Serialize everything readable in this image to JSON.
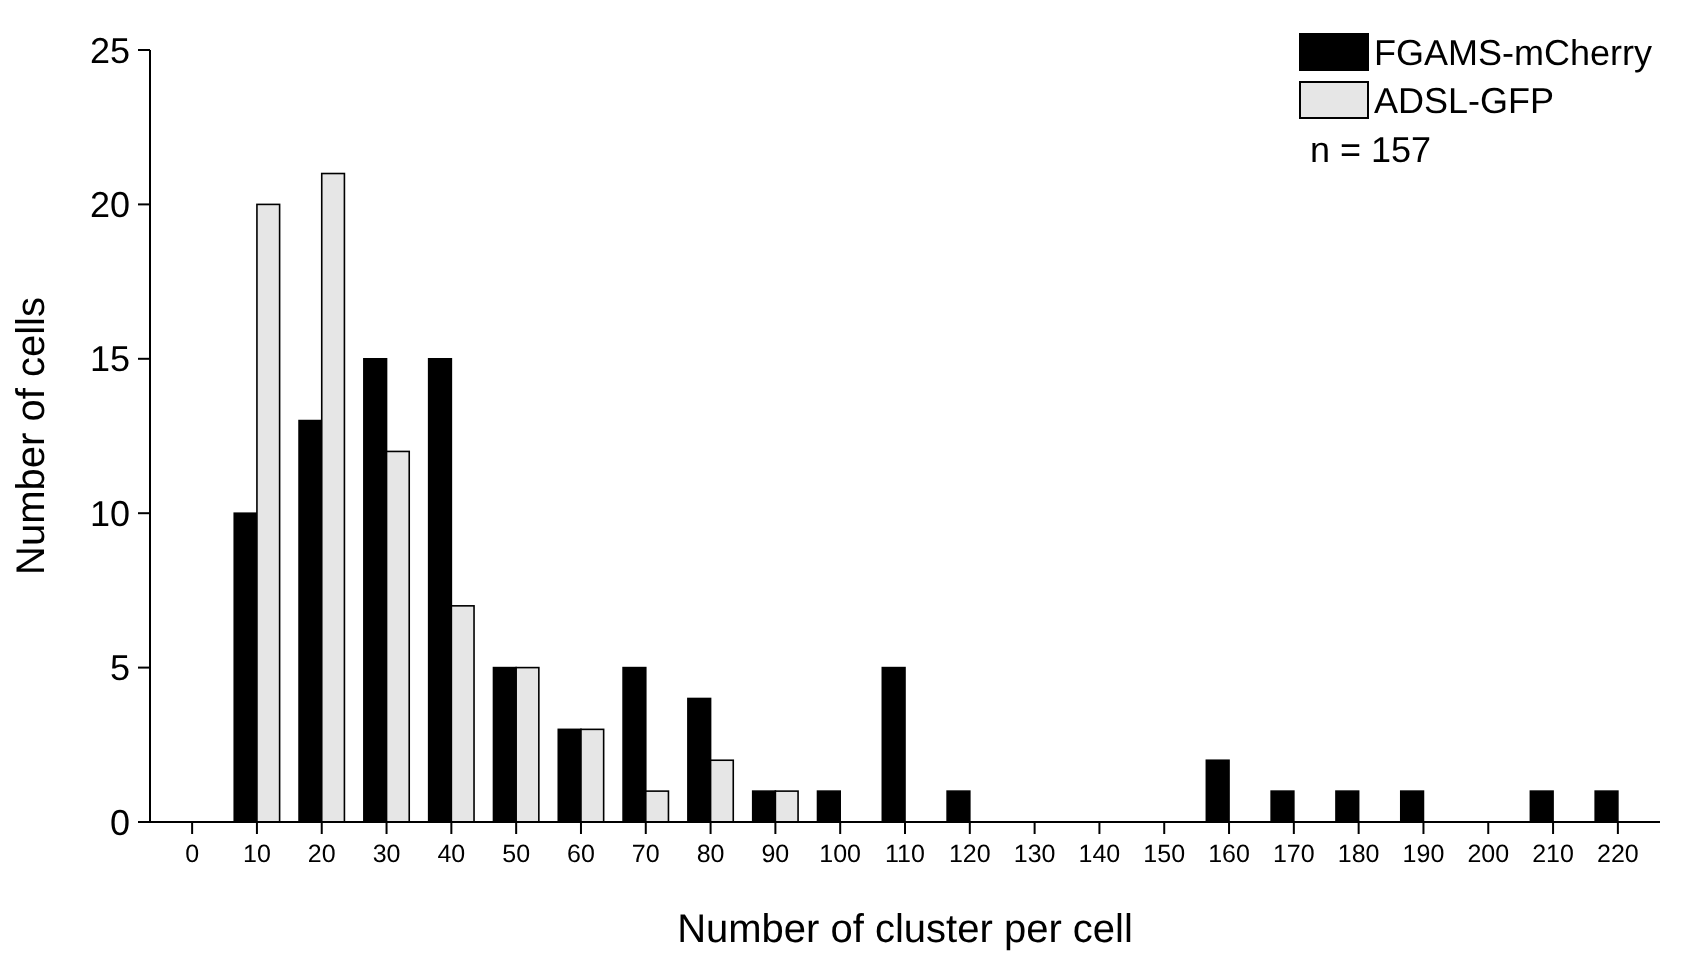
{
  "chart_data": {
    "type": "bar",
    "xlabel": "Number of cluster per cell",
    "ylabel": "Number of cells",
    "categories": [
      "0",
      "10",
      "20",
      "30",
      "40",
      "50",
      "60",
      "70",
      "80",
      "90",
      "100",
      "110",
      "120",
      "130",
      "140",
      "150",
      "160",
      "170",
      "180",
      "190",
      "200",
      "210",
      "220"
    ],
    "series": [
      {
        "name": "FGAMS-mCherry",
        "color": "#000000",
        "values": [
          0,
          10,
          13,
          15,
          15,
          5,
          3,
          5,
          4,
          1,
          1,
          5,
          1,
          0,
          0,
          0,
          2,
          1,
          1,
          1,
          0,
          1,
          1
        ]
      },
      {
        "name": "ADSL-GFP",
        "color": "#e6e6e6",
        "values": [
          0,
          20,
          21,
          12,
          7,
          5,
          3,
          1,
          2,
          1,
          0,
          0,
          0,
          0,
          0,
          0,
          0,
          0,
          0,
          0,
          0,
          0,
          0
        ]
      }
    ],
    "ylim": [
      0,
      25
    ],
    "yticks": [
      0,
      5,
      10,
      15,
      20,
      25
    ],
    "grid": false,
    "legend": "top right",
    "annotations": [
      "n = 157"
    ]
  }
}
